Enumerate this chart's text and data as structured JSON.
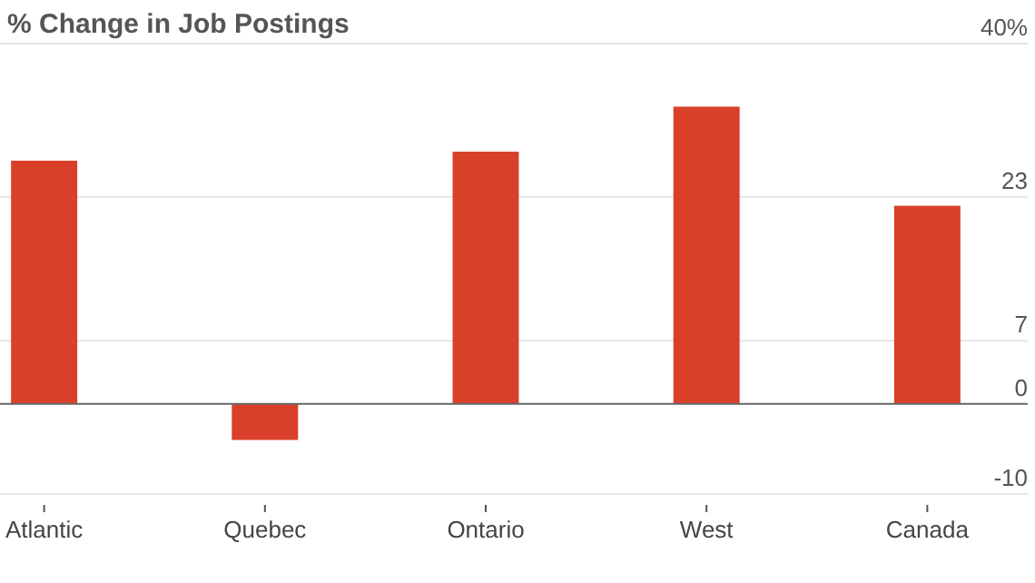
{
  "chart_data": {
    "type": "bar",
    "title": "% Change in Job Postings",
    "categories": [
      "Atlantic",
      "Quebec",
      "Ontario",
      "West",
      "Canada"
    ],
    "values": [
      27,
      -4,
      28,
      33,
      22
    ],
    "color": "#d9402a",
    "ylim": [
      -10,
      40
    ],
    "yticks": [
      -10,
      0,
      7,
      23,
      {
        "value": 40,
        "label": "40%"
      }
    ],
    "grid": "y"
  }
}
